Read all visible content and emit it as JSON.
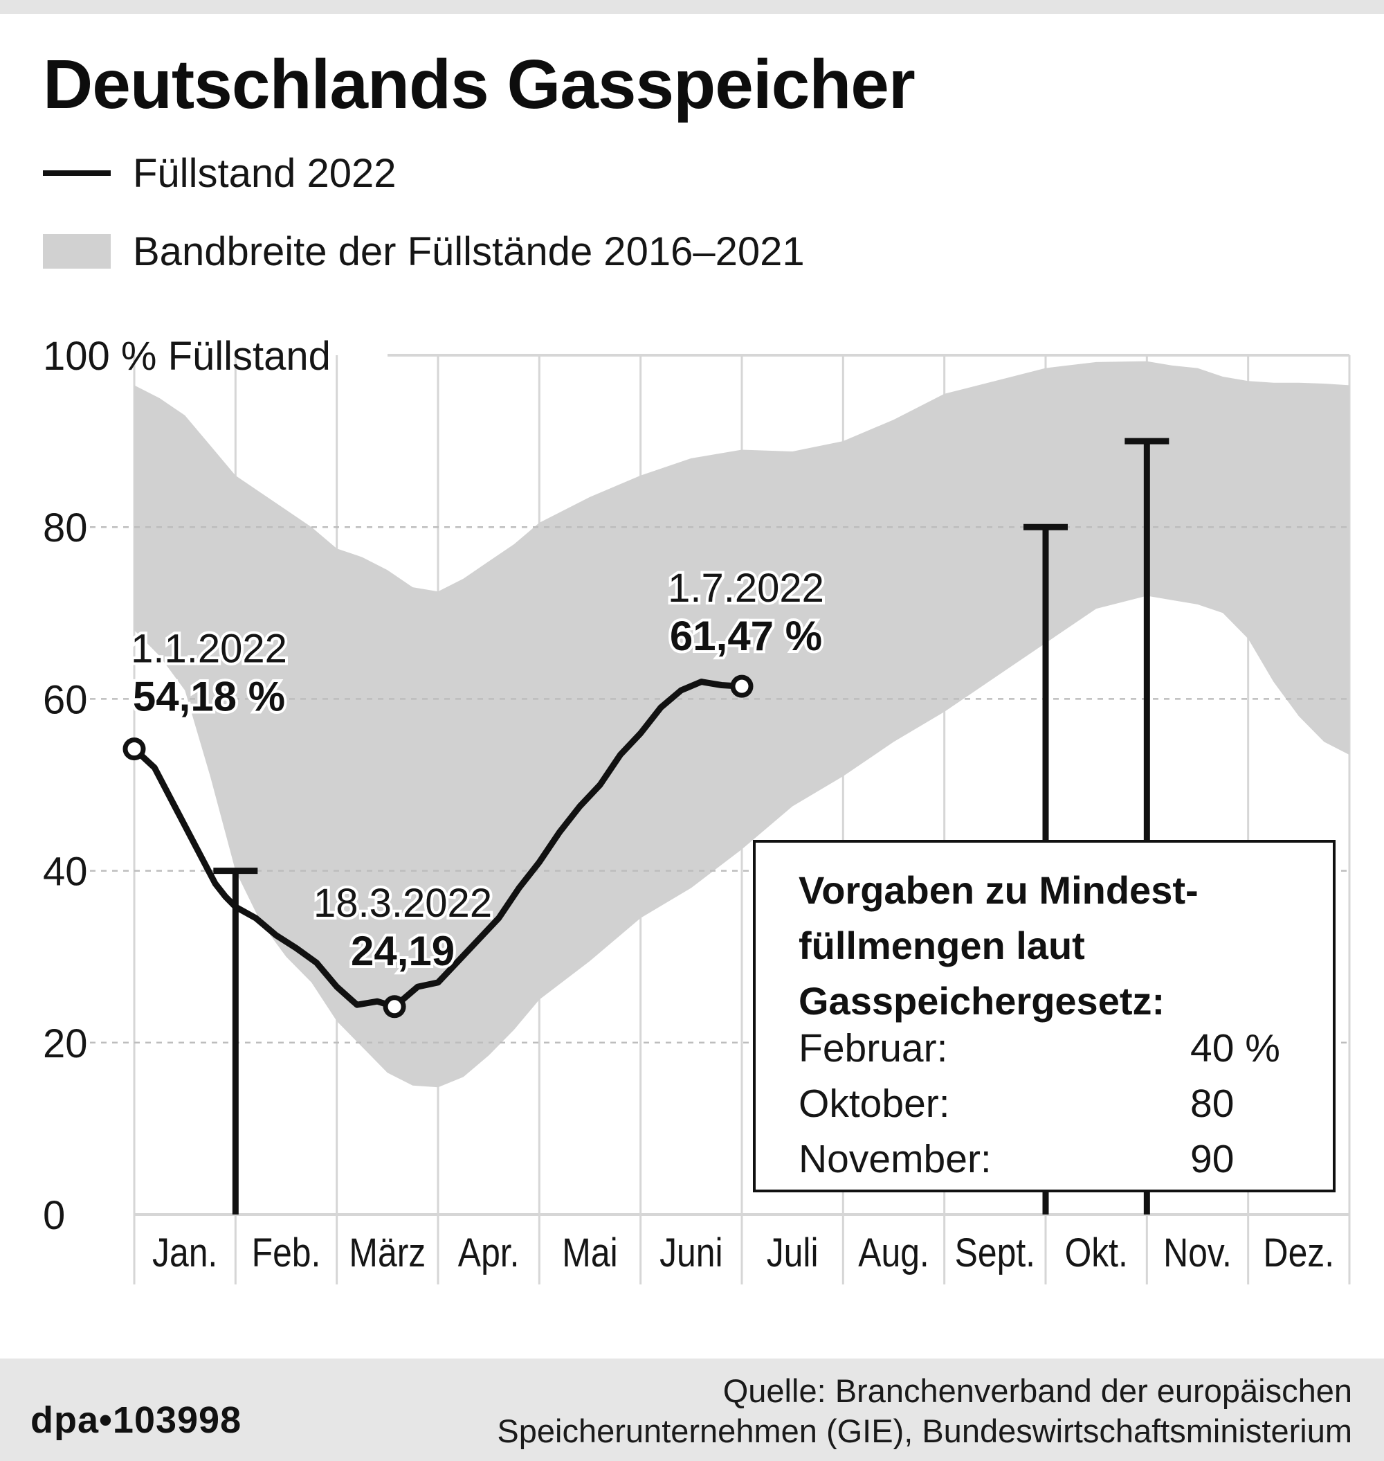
{
  "title": "Deutschlands Gasspeicher",
  "legend": {
    "line_label": "Füllstand 2022",
    "band_label": "Bandbreite der Füllstände 2016–2021"
  },
  "colors": {
    "line": "#111111",
    "band": "#d1d1d1",
    "grid": "#d6d6d6",
    "footer_bg": "#e6e6e6"
  },
  "chart_data": {
    "type": "line",
    "title": "Deutschlands Gasspeicher",
    "ylabel": "100 % Füllstand",
    "xlabel": "",
    "ylim": [
      0,
      100
    ],
    "yticks": [
      0,
      20,
      40,
      60,
      80,
      100
    ],
    "ytick_labels": [
      "0",
      "20",
      "40",
      "60",
      "80",
      "100 % Füllstand"
    ],
    "xlim": [
      0,
      12
    ],
    "categories": [
      "Jan.",
      "Feb.",
      "März",
      "Apr.",
      "Mai",
      "Juni",
      "Juli",
      "Aug.",
      "Sept.",
      "Okt.",
      "Nov.",
      "Dez."
    ],
    "grid": true,
    "legend_position": "top-left",
    "series": [
      {
        "name": "Füllstand 2022",
        "type": "line",
        "x": [
          0,
          0.2,
          0.4,
          0.6,
          0.8,
          0.9,
          1.0,
          1.2,
          1.4,
          1.6,
          1.8,
          2.0,
          2.2,
          2.4,
          2.57,
          2.8,
          3.0,
          3.2,
          3.4,
          3.6,
          3.8,
          4.0,
          4.2,
          4.4,
          4.6,
          4.8,
          5.0,
          5.2,
          5.4,
          5.6,
          5.8,
          6.0
        ],
        "values": [
          54.18,
          52,
          47.5,
          43,
          38.5,
          37,
          35.8,
          34.5,
          32.5,
          31,
          29.3,
          26.5,
          24.4,
          24.8,
          24.19,
          26.5,
          27,
          29.5,
          32,
          34.5,
          38,
          41,
          44.5,
          47.5,
          50,
          53.5,
          56,
          59,
          61,
          62,
          61.6,
          61.47
        ]
      },
      {
        "name": "Bandbreite der Füllstände 2016–2021",
        "type": "area_range",
        "x": [
          0,
          0.25,
          0.5,
          0.75,
          1.0,
          1.25,
          1.5,
          1.75,
          2.0,
          2.25,
          2.5,
          2.75,
          3.0,
          3.25,
          3.5,
          3.75,
          4.0,
          4.5,
          5.0,
          5.5,
          6.0,
          6.5,
          7.0,
          7.5,
          8.0,
          8.5,
          9.0,
          9.5,
          10.0,
          10.25,
          10.5,
          10.75,
          11.0,
          11.25,
          11.5,
          11.75,
          12.0
        ],
        "upper": [
          96.5,
          95,
          93,
          89.5,
          86,
          84,
          82,
          80,
          77.5,
          76.5,
          75,
          73,
          72.5,
          74,
          76,
          78,
          80.5,
          83.5,
          86,
          88,
          89,
          88.8,
          90,
          92.5,
          95.5,
          97,
          98.5,
          99.2,
          99.3,
          98.8,
          98.5,
          97.5,
          97,
          96.8,
          96.8,
          96.7,
          96.5
        ],
        "lower": [
          68,
          65,
          61,
          51,
          40,
          34,
          30,
          27,
          22.5,
          19.5,
          16.5,
          15,
          14.8,
          16,
          18.5,
          21.5,
          25,
          29.5,
          34.5,
          38,
          42.5,
          47.5,
          51,
          55,
          58.5,
          62.5,
          66.5,
          70.5,
          72,
          71.5,
          71,
          70,
          67,
          62,
          58,
          55,
          53.5
        ]
      }
    ],
    "targets": [
      {
        "month": "Februar",
        "value": 40,
        "x": 1.0
      },
      {
        "month": "Oktober",
        "value": 80,
        "x": 9.0
      },
      {
        "month": "November",
        "value": 90,
        "x": 10.0
      }
    ],
    "annotations": [
      {
        "date": "1.1.2022",
        "value_label": "54,18 %",
        "x": 0,
        "y": 54.18
      },
      {
        "date": "18.3.2022",
        "value_label": "24,19",
        "x": 2.57,
        "y": 24.19
      },
      {
        "date": "1.7.2022",
        "value_label": "61,47 %",
        "x": 6.0,
        "y": 61.47
      }
    ],
    "box": {
      "heading": [
        "Vorgaben zu Mindest-",
        "füllmengen laut",
        "Gasspeichergesetz:"
      ],
      "rows": [
        {
          "label": "Februar:",
          "value": "40 %"
        },
        {
          "label": "Oktober:",
          "value": "80"
        },
        {
          "label": "November:",
          "value": "90"
        }
      ]
    }
  },
  "footer": {
    "brand": "dpa•103998",
    "source_line1": "Quelle: Branchenverband der europäischen",
    "source_line2": "Speicherunternehmen (GIE), Bundeswirtschaftsministerium"
  }
}
